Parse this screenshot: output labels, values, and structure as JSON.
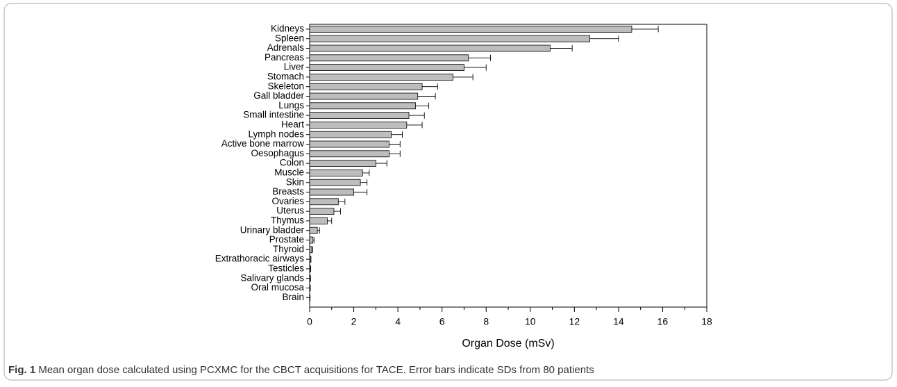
{
  "chart_data": {
    "type": "bar",
    "orientation": "horizontal",
    "categories": [
      "Kidneys",
      "Spleen",
      "Adrenals",
      "Pancreas",
      "Liver",
      "Stomach",
      "Skeleton",
      "Gall bladder",
      "Lungs",
      "Small intestine",
      "Heart",
      "Lymph nodes",
      "Active bone marrow",
      "Oesophagus",
      "Colon",
      "Muscle",
      "Skin",
      "Breasts",
      "Ovaries",
      "Uterus",
      "Thymus",
      "Urinary bladder",
      "Prostate",
      "Thyroid",
      "Extrathoracic airways",
      "Testicles",
      "Salivary glands",
      "Oral mucosa",
      "Brain"
    ],
    "values": [
      14.6,
      12.7,
      10.9,
      7.2,
      7.0,
      6.5,
      5.1,
      4.9,
      4.8,
      4.5,
      4.4,
      3.7,
      3.6,
      3.6,
      3.0,
      2.4,
      2.3,
      2.0,
      1.3,
      1.1,
      0.8,
      0.35,
      0.15,
      0.1,
      0.05,
      0.04,
      0.03,
      0.02,
      0.01
    ],
    "errors": [
      1.2,
      1.3,
      1.0,
      1.0,
      1.0,
      0.9,
      0.7,
      0.8,
      0.6,
      0.7,
      0.7,
      0.5,
      0.5,
      0.5,
      0.5,
      0.3,
      0.3,
      0.6,
      0.3,
      0.3,
      0.2,
      0.1,
      0.05,
      0.03,
      0.01,
      0.01,
      0.01,
      0.01,
      0.01
    ],
    "color": "#bdbdbd",
    "xlim": [
      0,
      18
    ],
    "xticks": [
      0,
      2,
      4,
      6,
      8,
      10,
      12,
      14,
      16,
      18
    ],
    "xminorticks": [
      1,
      3,
      5,
      7,
      9,
      11,
      13,
      15,
      17
    ],
    "xlabel": "Organ Dose (mSv)",
    "caption": {
      "label": "Fig. 1",
      "text": "Mean organ dose calculated using PCXMC for the CBCT acquisitions for TACE. Error bars indicate SDs from 80 patients"
    }
  }
}
